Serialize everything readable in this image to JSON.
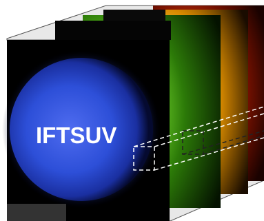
{
  "label": "IFTSUV",
  "colors": {
    "frame_outline": "#555555",
    "blue_disk": "#2c4fe0",
    "green_disk": "#5fd01f",
    "yellow_disk": "#ffd23c",
    "red_disk": "#e83a10",
    "dashed_box": "#ffffff",
    "dashed_box_dark": "#222222"
  },
  "layers": [
    {
      "name": "red-channel",
      "color": "#e83a10"
    },
    {
      "name": "yellow-channel",
      "color": "#ffd23c"
    },
    {
      "name": "green-channel",
      "color": "#5fd01f"
    },
    {
      "name": "blue-channel",
      "color": "#2c4fe0"
    }
  ]
}
